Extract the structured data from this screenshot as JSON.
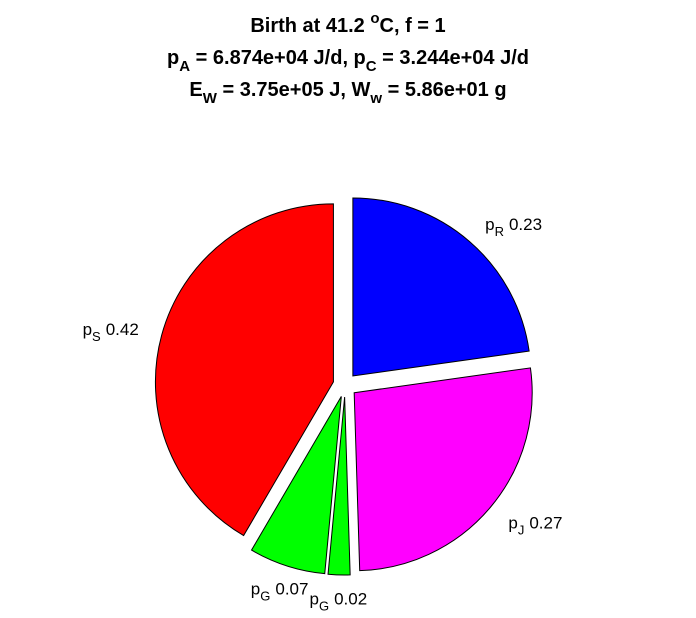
{
  "chart_data": {
    "type": "pie",
    "title": [
      [
        {
          "text": "Birth at 41.2 "
        },
        {
          "sup": "o"
        },
        {
          "text": "C, f = 1"
        }
      ],
      [
        {
          "text": "p"
        },
        {
          "sub": "A"
        },
        {
          "text": " = 6.874e+04 J/d, p"
        },
        {
          "sub": "C"
        },
        {
          "text": " = 3.244e+04 J/d"
        }
      ],
      [
        {
          "text": "E"
        },
        {
          "sub": "W"
        },
        {
          "text": " = 3.75e+05 J, W"
        },
        {
          "sub": "w"
        },
        {
          "text": " = 5.86e+01 g"
        }
      ]
    ],
    "categories": [
      {
        "text": "p",
        "sub": "R"
      },
      {
        "text": "p",
        "sub": "J"
      },
      {
        "text": "p",
        "sub": "G"
      },
      {
        "text": "p",
        "sub": "G"
      },
      {
        "text": "p",
        "sub": "S"
      }
    ],
    "values": [
      0.23,
      0.27,
      0.02,
      0.07,
      0.42
    ],
    "colors": [
      "#0000ff",
      "#ff00ff",
      "#00ff00",
      "#00ff00",
      "#ff0000"
    ],
    "explode": true
  }
}
